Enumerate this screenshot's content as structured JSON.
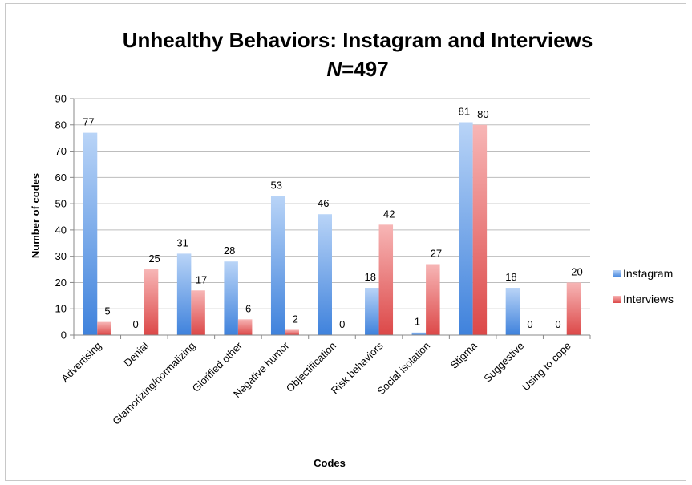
{
  "chart_data": {
    "type": "bar",
    "title": "Unhealthy Behaviors: Instagram and Interviews",
    "subtitle_prefix": "N",
    "subtitle_suffix": "=497",
    "xlabel": "Codes",
    "ylabel": "Number of codes",
    "ylim": [
      0,
      90
    ],
    "yticks": [
      0,
      10,
      20,
      30,
      40,
      50,
      60,
      70,
      80,
      90
    ],
    "grid": true,
    "legend_position": "right",
    "categories": [
      "Advertising",
      "Denial",
      "Glamorizing/normalizing",
      "Glorified other",
      "Negative humor",
      "Objectification",
      "Risk behaviors",
      "Social isolation",
      "Stigma",
      "Suggestive",
      "Using to cope"
    ],
    "series": [
      {
        "name": "Instagram",
        "values": [
          77,
          0,
          31,
          28,
          53,
          46,
          18,
          1,
          81,
          18,
          0
        ],
        "color": "#4f8fe0"
      },
      {
        "name": "Interviews",
        "values": [
          5,
          25,
          17,
          6,
          2,
          0,
          42,
          27,
          80,
          0,
          20
        ],
        "color": "#e05252"
      }
    ]
  }
}
